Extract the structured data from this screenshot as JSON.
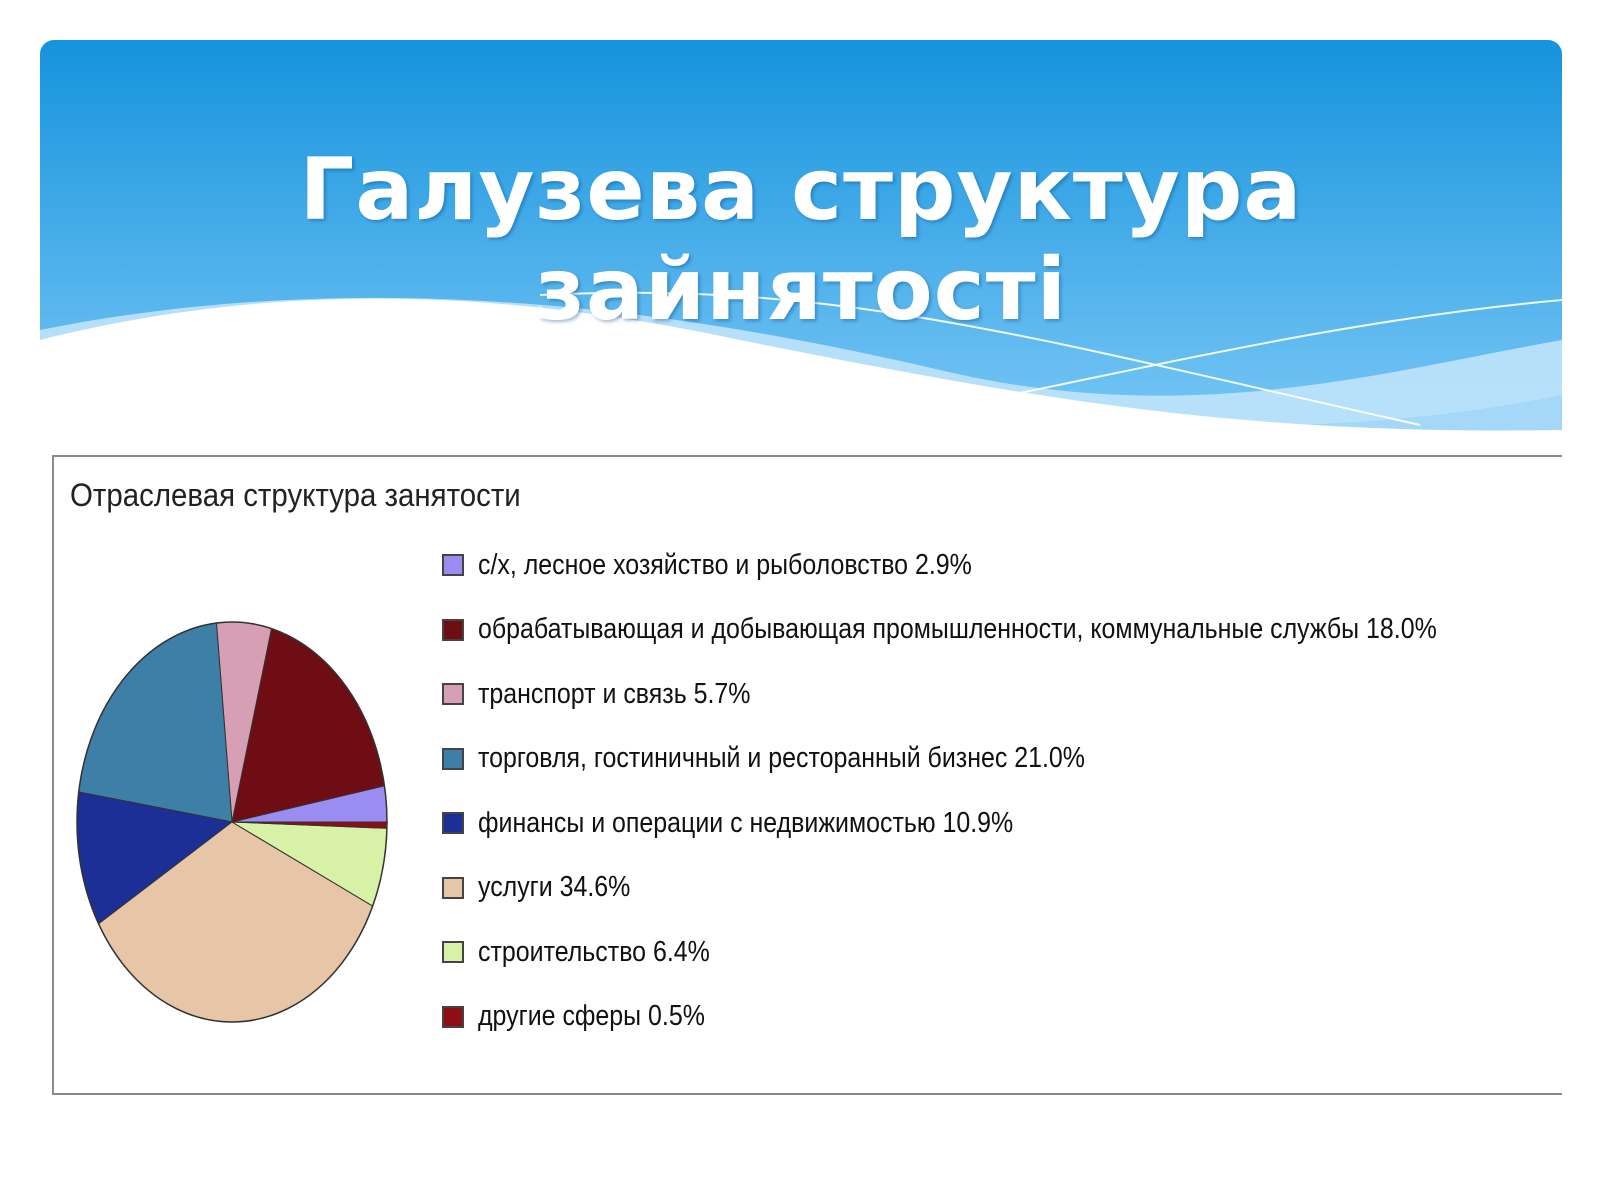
{
  "slide": {
    "title": "Галузева структура зайнятості"
  },
  "colors": {
    "header_top": "#1593dd",
    "header_bottom": "#7fcaf7"
  },
  "chart_data": {
    "type": "pie",
    "title": "Отраслевая структура занятости",
    "legend_position": "right",
    "slices": [
      {
        "label": "с/х, лесное хозяйство и рыболовство  2.9%",
        "value": 2.9,
        "color": "#9a8cf0"
      },
      {
        "label": "обрабатывающая и добывающая промышленности, коммунальные службы  18.0%",
        "value": 18.0,
        "color": "#6e0d14"
      },
      {
        "label": "транспорт и связь  5.7%",
        "value": 5.7,
        "color": "#d79fb4"
      },
      {
        "label": "торговля, гостиничный и ресторанный бизнес  21.0%",
        "value": 21.0,
        "color": "#3e7fa7"
      },
      {
        "label": "финансы и операции с недвижимостью  10.9%",
        "value": 10.9,
        "color": "#1c2f96"
      },
      {
        "label": "услуги  34.6%",
        "value": 34.6,
        "color": "#e6c6a6"
      },
      {
        "label": "строительство  6.4%",
        "value": 6.4,
        "color": "#d7f1a7"
      },
      {
        "label": "другие сферы  0.5%",
        "value": 0.5,
        "color": "#8f0e16"
      }
    ]
  }
}
